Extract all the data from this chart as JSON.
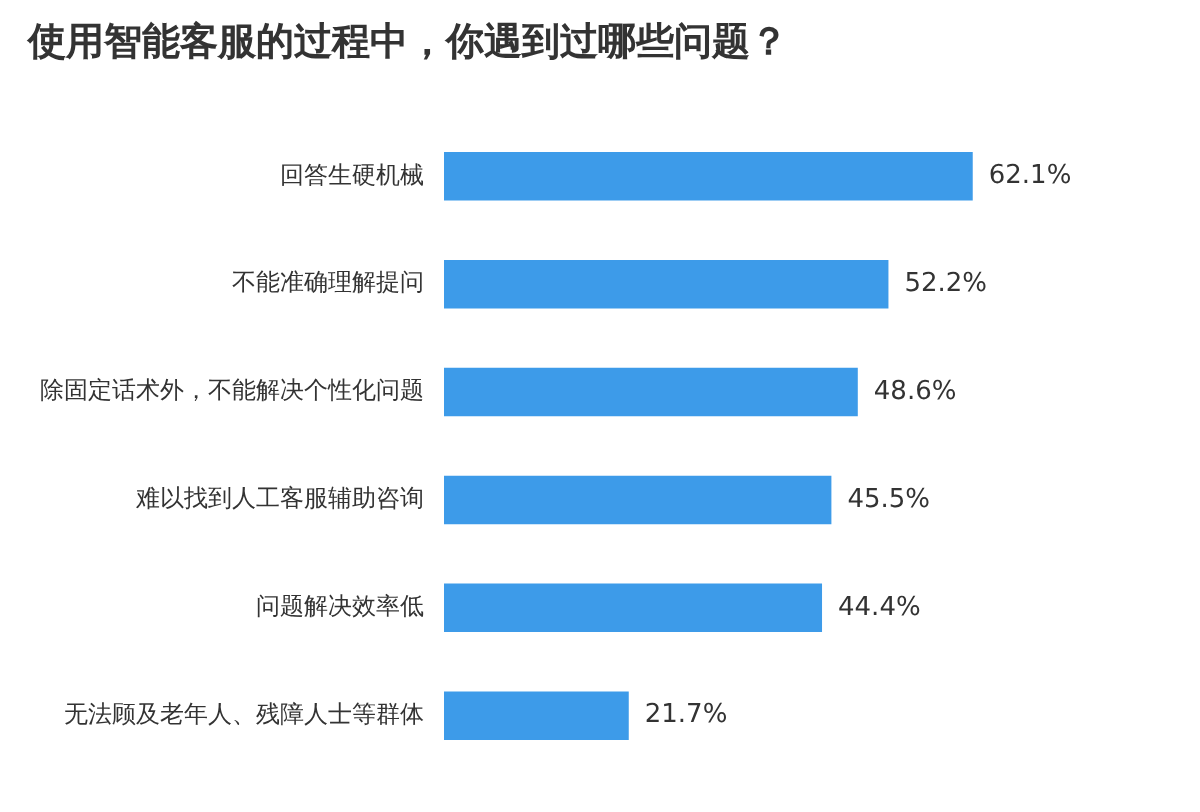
{
  "chart_data": {
    "type": "bar",
    "orientation": "horizontal",
    "title": "使用智能客服的过程中，你遇到过哪些问题？",
    "categories": [
      "回答生硬机械",
      "不能准确理解提问",
      "除固定话术外，不能解决个性化问题",
      "难以找到人工客服辅助咨询",
      "问题解决效率低",
      "无法顾及老年人、残障人士等群体"
    ],
    "values": [
      62.1,
      52.2,
      48.6,
      45.5,
      44.4,
      21.7
    ],
    "value_labels": [
      "62.1%",
      "52.2%",
      "48.6%",
      "45.5%",
      "44.4%",
      "21.7%"
    ],
    "color": "#3d9be9",
    "grid": false,
    "legend": false
  }
}
